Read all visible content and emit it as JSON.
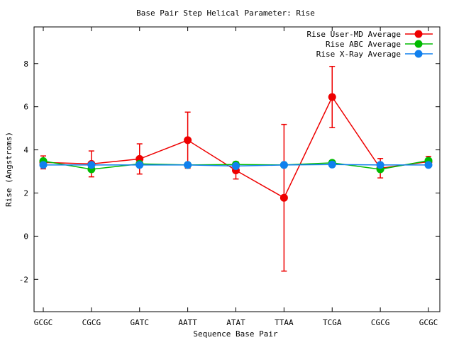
{
  "chart_data": {
    "type": "line",
    "title": "Base Pair Step Helical Parameter: Rise",
    "xlabel": "Sequence Base Pair",
    "ylabel": "Rise (Angstroms)",
    "categories": [
      "GCGC",
      "CGCG",
      "GATC",
      "AATT",
      "ATAT",
      "TTAA",
      "TCGA",
      "CGCG",
      "GCGC"
    ],
    "ylim": [
      -3.5,
      9.7
    ],
    "yticks": [
      -2,
      0,
      2,
      4,
      6,
      8
    ],
    "legend_position": "top-right",
    "grid": false,
    "series": [
      {
        "name": "Rise User-MD Average",
        "color": "#ee0000",
        "values": [
          3.42,
          3.35,
          3.58,
          4.45,
          3.05,
          1.78,
          6.45,
          3.15,
          3.45
        ],
        "errors": [
          0.3,
          0.6,
          0.7,
          1.3,
          0.4,
          3.4,
          1.42,
          0.45,
          0.25
        ]
      },
      {
        "name": "Rise ABC Average",
        "color": "#00bb00",
        "values": [
          3.48,
          3.1,
          3.35,
          3.3,
          3.32,
          3.3,
          3.4,
          3.1,
          3.5
        ],
        "errors": [
          0.1,
          0.1,
          0.08,
          0.08,
          0.12,
          0.08,
          0.1,
          0.1,
          0.1
        ]
      },
      {
        "name": "Rise X-Ray Average",
        "color": "#1080ee",
        "values": [
          3.3,
          3.3,
          3.3,
          3.3,
          3.25,
          3.3,
          3.32,
          3.3,
          3.3
        ],
        "errors": [
          0.05,
          0.05,
          0.05,
          0.05,
          0.05,
          0.05,
          0.05,
          0.05,
          0.05
        ]
      }
    ]
  }
}
